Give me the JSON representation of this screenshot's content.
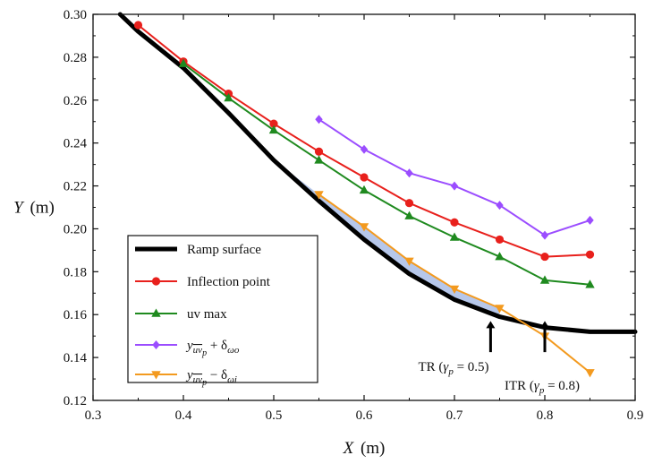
{
  "chart_data": {
    "type": "line",
    "xlabel_var": "X",
    "xlabel_unit": "(m)",
    "ylabel_var": "Y",
    "ylabel_unit": "(m)",
    "xlim": [
      0.3,
      0.9
    ],
    "ylim": [
      0.12,
      0.3
    ],
    "xticks": [
      "0.3",
      "0.4",
      "0.5",
      "0.6",
      "0.7",
      "0.8",
      "0.9"
    ],
    "yticks": [
      "0.12",
      "0.14",
      "0.16",
      "0.18",
      "0.20",
      "0.22",
      "0.24",
      "0.26",
      "0.28",
      "0.30"
    ],
    "grid": false,
    "legend_position": "bottom-left",
    "colors": {
      "ramp": "#000000",
      "inflection": "#e8201c",
      "uvmax": "#1f8a1f",
      "plus": "#9b4dff",
      "minus": "#f39a1f",
      "shade": "#a9bde6"
    },
    "ramp_surface": {
      "x": [
        0.33,
        0.35,
        0.4,
        0.45,
        0.5,
        0.55,
        0.6,
        0.65,
        0.7,
        0.75,
        0.8,
        0.85,
        0.9
      ],
      "y": [
        0.3,
        0.292,
        0.275,
        0.254,
        0.232,
        0.213,
        0.195,
        0.179,
        0.167,
        0.159,
        0.154,
        0.152,
        0.152
      ]
    },
    "series": [
      {
        "key": "inflection",
        "marker": "circle",
        "x": [
          0.35,
          0.4,
          0.45,
          0.5,
          0.55,
          0.6,
          0.65,
          0.7,
          0.75,
          0.8,
          0.85
        ],
        "y": [
          0.295,
          0.278,
          0.263,
          0.249,
          0.236,
          0.224,
          0.212,
          0.203,
          0.195,
          0.187,
          0.188
        ]
      },
      {
        "key": "uvmax",
        "marker": "triangle-up",
        "x": [
          0.4,
          0.45,
          0.5,
          0.55,
          0.6,
          0.65,
          0.7,
          0.75,
          0.8,
          0.85
        ],
        "y": [
          0.277,
          0.261,
          0.246,
          0.232,
          0.218,
          0.206,
          0.196,
          0.187,
          0.176,
          0.174
        ]
      },
      {
        "key": "plus",
        "marker": "diamond",
        "x": [
          0.55,
          0.6,
          0.65,
          0.7,
          0.75,
          0.8,
          0.85
        ],
        "y": [
          0.251,
          0.237,
          0.226,
          0.22,
          0.211,
          0.197,
          0.204
        ]
      },
      {
        "key": "minus",
        "marker": "triangle-down",
        "x": [
          0.55,
          0.6,
          0.65,
          0.7,
          0.75,
          0.8,
          0.85
        ],
        "y": [
          0.216,
          0.201,
          0.185,
          0.172,
          0.163,
          0.15,
          0.133
        ]
      }
    ],
    "legend": [
      {
        "key": "ramp",
        "label": "Ramp surface"
      },
      {
        "key": "inflection",
        "label": "Inflection point"
      },
      {
        "key": "uvmax",
        "label": "uv max"
      },
      {
        "key": "plus",
        "label_parts": [
          "y",
          "uv",
          "p",
          " + δ",
          "ωo"
        ]
      },
      {
        "key": "minus",
        "label_parts": [
          "y",
          "uv",
          "p",
          " − δ",
          "ωi"
        ]
      }
    ],
    "annotations": [
      {
        "key": "tr",
        "text_before": "TR (",
        "gamma": "γ",
        "sub": "p",
        "text_after": " = 0.5)",
        "arrow_x": 0.74
      },
      {
        "key": "itr",
        "text_before": "ITR (",
        "gamma": "γ",
        "sub": "p",
        "text_after": " = 0.8)",
        "arrow_x": 0.8
      }
    ]
  }
}
